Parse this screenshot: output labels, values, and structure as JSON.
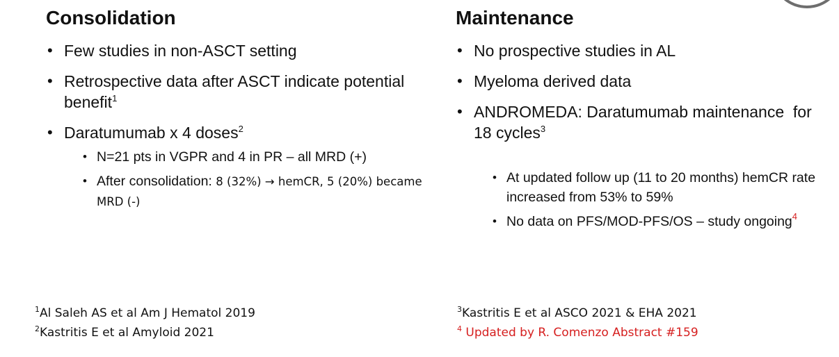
{
  "consolidation": {
    "title": "Consolidation",
    "bullets": [
      {
        "text": "Few studies in non-ASCT setting"
      },
      {
        "text": "Retrospective data after ASCT indicate potential benefit",
        "sup": "1"
      },
      {
        "text": "Daratumumab x 4 doses",
        "sup": "2"
      }
    ],
    "sub_bullets": [
      {
        "text": "N=21 pts in VGPR and 4 in PR – all MRD (+)"
      },
      {
        "prefix": "After consolidation: ",
        "rest": "8 (32%) → hemCR, 5 (20%) became MRD (-)"
      }
    ]
  },
  "maintenance": {
    "title": "Maintenance",
    "bullets": [
      {
        "text": "No prospective studies in AL"
      },
      {
        "text": "Myeloma derived data"
      },
      {
        "text": "ANDROMEDA: Daratumumab maintenance  for 18 cycles",
        "sup": "3"
      }
    ],
    "sub_bullets": [
      {
        "text": "At updated follow up (11 to 20 months) hemCR rate increased from 53% to 59%"
      },
      {
        "text": "No data on PFS/MOD-PFS/OS – study ongoing",
        "sup": "4"
      }
    ]
  },
  "references_left": [
    {
      "num": "1",
      "text": "Al Saleh AS et al Am J Hematol 2019"
    },
    {
      "num": "2",
      "text": "Kastritis E et al Amyloid 2021"
    }
  ],
  "references_right": [
    {
      "num": "3",
      "text": "Kastritis E et al ASCO 2021 & EHA 2021"
    },
    {
      "num": "4",
      "text": " Updated by R. Comenzo Abstract #159"
    }
  ],
  "colors": {
    "highlight": "#d62020",
    "text": "#111111",
    "corner_ring": "#6e6e6e"
  }
}
